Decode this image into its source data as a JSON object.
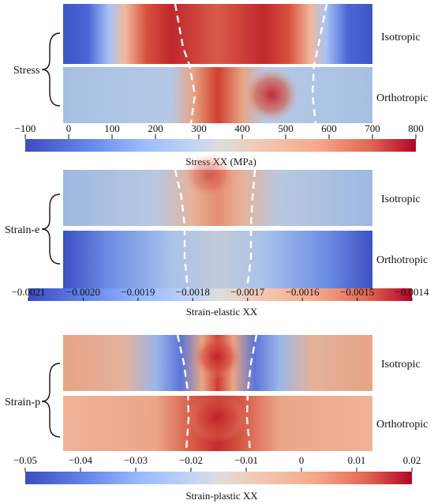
{
  "sections": [
    {
      "group_label": "Stress",
      "rows": [
        {
          "label": "Isotropic"
        },
        {
          "label": "Orthotropic"
        }
      ],
      "colorbar": {
        "title": "Stress XX (MPa)",
        "min_label": "−100",
        "max_label": "800",
        "ticks": [
          "0",
          "100",
          "200",
          "300",
          "400",
          "500",
          "600",
          "700"
        ]
      }
    },
    {
      "group_label": "Strain-e",
      "rows": [
        {
          "label": "Isotropic"
        },
        {
          "label": "Orthotropic"
        }
      ],
      "colorbar": {
        "title": "Strain-elastic XX",
        "min_label": "−0.0021",
        "max_label": "−0.0014",
        "ticks": [
          "−0.0020",
          "−0.0019",
          "−0.0018",
          "−0.0017",
          "−0.0016",
          "−0.0015"
        ]
      }
    },
    {
      "group_label": "Strain-p",
      "rows": [
        {
          "label": "Isotropic"
        },
        {
          "label": "Orthotropic"
        }
      ],
      "colorbar": {
        "title": "Strain-plastic XX",
        "min_label": "−0.05",
        "max_label": "0.02",
        "ticks": [
          "−0.04",
          "−0.03",
          "−0.02",
          "−0.01",
          "0",
          "0.01"
        ]
      }
    }
  ],
  "colors": {
    "cold": "#3b4cc0",
    "neutral": "#dddddd",
    "hot": "#b40426",
    "dashed_line": "#ffffff"
  }
}
